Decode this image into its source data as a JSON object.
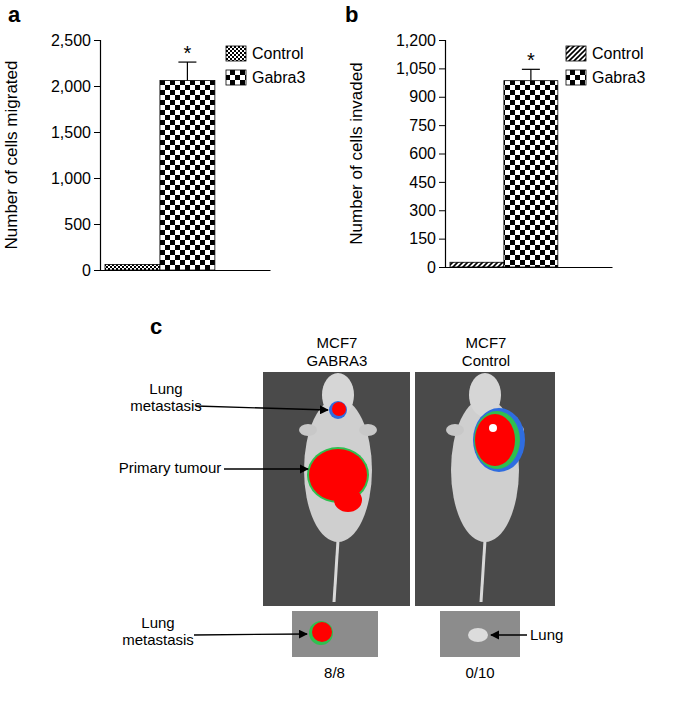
{
  "chart_data": [
    {
      "type": "bar",
      "title": "a",
      "y_label": "Number of cells migrated",
      "categories": [
        null
      ],
      "series": [
        {
          "name": "Control",
          "color": "#000000",
          "values": [
            60
          ]
        },
        {
          "name": "Gabra3",
          "color": "#000000",
          "values": [
            2060
          ],
          "errors": [
            200
          ],
          "annotation": "*"
        }
      ],
      "ylim": [
        0,
        2500
      ],
      "yticks": [
        0,
        500,
        {
          "value": 1000,
          "label": "1,000"
        },
        {
          "value": 1500,
          "label": "1,500"
        },
        {
          "value": 2000,
          "label": "2,000"
        },
        {
          "value": 2500,
          "label": "2,500"
        }
      ],
      "legend": "right",
      "grid": false
    },
    {
      "type": "bar",
      "title": "b",
      "y_label": "Number of cells invaded",
      "categories": [
        null
      ],
      "series": [
        {
          "name": "Control",
          "color": "#000000",
          "values": [
            25
          ]
        },
        {
          "name": "Gabra3",
          "color": "#000000",
          "values": [
            985
          ],
          "errors": [
            60
          ],
          "annotation": "*"
        }
      ],
      "ylim": [
        0,
        1200
      ],
      "yticks": [
        0,
        150,
        300,
        450,
        600,
        750,
        900,
        {
          "value": 1050,
          "label": "1,050"
        },
        {
          "value": 1200,
          "label": "1,200"
        }
      ],
      "legend": "right",
      "grid": false
    }
  ],
  "figure_panel": {
    "label": "c",
    "images": [
      {
        "title": [
          "MCF7",
          "GABRA3"
        ],
        "callouts": [
          {
            "text": [
              "Lung",
              "metastasis"
            ]
          },
          {
            "text": [
              "Primary tumour"
            ]
          }
        ],
        "inset_callout": [
          "Lung",
          "metastasis"
        ],
        "count": "8/8"
      },
      {
        "title": [
          "MCF7",
          "Control"
        ],
        "inset_callout": [
          "Lung"
        ],
        "count": "0/10"
      }
    ]
  }
}
